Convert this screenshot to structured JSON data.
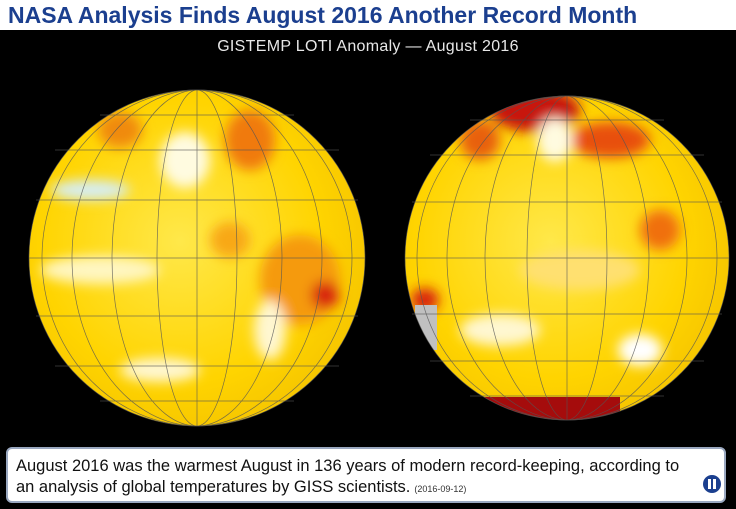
{
  "header": {
    "title": "NASA Analysis Finds August 2016 Another Record Month"
  },
  "image": {
    "subtitle": "GISTEMP LOTI Anomaly — August 2016"
  },
  "caption": {
    "text": "August 2016 was the warmest August in 136 years of modern record-keeping, according to an analysis of global temperatures by GISS scientists.",
    "date": "(2016-09-12)"
  }
}
